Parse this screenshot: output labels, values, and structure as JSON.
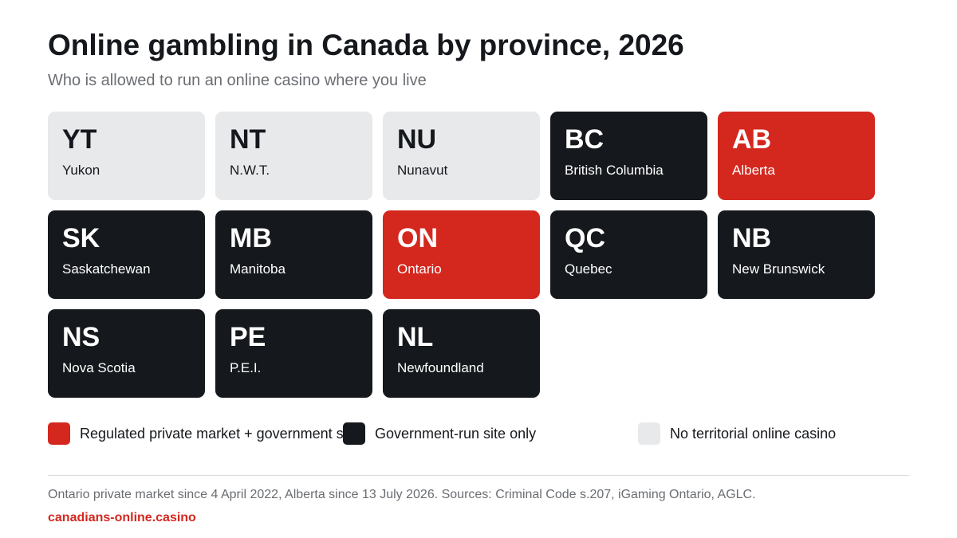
{
  "title": "Online gambling in Canada by province, 2026",
  "subtitle": "Who is allowed to run an online casino where you live",
  "colors": {
    "private": "#d4281f",
    "gov": "#15181c",
    "none": "#e8e9eb"
  },
  "tiles": [
    {
      "code": "YT",
      "name": "Yukon",
      "status": "none"
    },
    {
      "code": "NT",
      "name": "N.W.T.",
      "status": "none"
    },
    {
      "code": "NU",
      "name": "Nunavut",
      "status": "none"
    },
    {
      "code": "BC",
      "name": "British Columbia",
      "status": "gov"
    },
    {
      "code": "AB",
      "name": "Alberta",
      "status": "private"
    },
    {
      "code": "SK",
      "name": "Saskatchewan",
      "status": "gov"
    },
    {
      "code": "MB",
      "name": "Manitoba",
      "status": "gov"
    },
    {
      "code": "ON",
      "name": "Ontario",
      "status": "private"
    },
    {
      "code": "QC",
      "name": "Quebec",
      "status": "gov"
    },
    {
      "code": "NB",
      "name": "New Brunswick",
      "status": "gov"
    },
    {
      "code": "NS",
      "name": "Nova Scotia",
      "status": "gov"
    },
    {
      "code": "PE",
      "name": "P.E.I.",
      "status": "gov"
    },
    {
      "code": "NL",
      "name": "Newfoundland",
      "status": "gov"
    }
  ],
  "legend": [
    {
      "label": "Regulated private market + government s",
      "status": "private"
    },
    {
      "label": "Government-run site only",
      "status": "gov"
    },
    {
      "label": "No territorial online casino",
      "status": "none"
    }
  ],
  "footer": {
    "source": "Ontario private market since 4 April 2022, Alberta since 13 July 2026. Sources: Criminal Code s.207, iGaming Ontario, AGLC.",
    "brand": "canadians-online.casino"
  }
}
